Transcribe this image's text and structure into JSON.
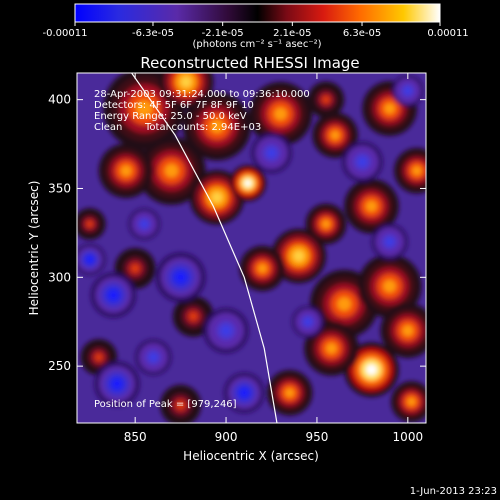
{
  "chart_data": {
    "type": "heatmap",
    "title": "Reconstructed RHESSI Image",
    "xlabel": "Heliocentric X (arcsec)",
    "ylabel": "Heliocentric Y (arcsec)",
    "xlim": [
      818,
      1010
    ],
    "ylim": [
      218,
      415
    ],
    "x_ticks": [
      850,
      900,
      950,
      1000
    ],
    "y_ticks": [
      250,
      300,
      350,
      400
    ],
    "colorbar": {
      "ticks": [
        "-0.00011",
        "-6.3e-05",
        "-2.1e-05",
        "2.1e-05",
        "6.3e-05",
        "0.00011"
      ],
      "tick_values": [
        -0.00011,
        -6.3e-05,
        -2.1e-05,
        2.1e-05,
        6.3e-05,
        0.00011
      ],
      "label": "(photons cm⁻² s⁻¹ asec⁻²)",
      "colormap": [
        "#0000ff",
        "#3a2bd0",
        "#5a2aa8",
        "#2a0a2e",
        "#000000",
        "#8a0a1a",
        "#e01a10",
        "#ff7a00",
        "#ffd000",
        "#ffffff"
      ]
    },
    "annotations": [
      "28-Apr-2003 09:31:24.000 to 09:36:10.000",
      "Detectors: 4F 5F 6F 7F 8F 9F 10",
      "Energy Range: 25.0 - 50.0 keV",
      "Clean",
      "Total counts: 2.94E+03"
    ],
    "peak_label": "Position of Peak = [979,246]",
    "peak": [
      979,
      246
    ],
    "limb": [
      [
        846,
        418
      ],
      [
        872,
        380
      ],
      [
        893,
        340
      ],
      [
        910,
        300
      ],
      [
        921,
        260
      ],
      [
        928,
        218
      ]
    ],
    "blobs": [
      {
        "x": 855,
        "y": 395,
        "r": 18,
        "v": 0.75
      },
      {
        "x": 878,
        "y": 410,
        "r": 12,
        "v": 0.85
      },
      {
        "x": 895,
        "y": 385,
        "r": 15,
        "v": 0.7
      },
      {
        "x": 870,
        "y": 360,
        "r": 15,
        "v": 0.7
      },
      {
        "x": 845,
        "y": 360,
        "r": 12,
        "v": 0.65
      },
      {
        "x": 895,
        "y": 345,
        "r": 12,
        "v": 0.9
      },
      {
        "x": 912,
        "y": 353,
        "r": 8,
        "v": 1.0
      },
      {
        "x": 930,
        "y": 392,
        "r": 14,
        "v": 0.65
      },
      {
        "x": 960,
        "y": 380,
        "r": 10,
        "v": 0.7
      },
      {
        "x": 990,
        "y": 395,
        "r": 12,
        "v": 0.6
      },
      {
        "x": 1005,
        "y": 360,
        "r": 10,
        "v": 0.75
      },
      {
        "x": 980,
        "y": 340,
        "r": 12,
        "v": 0.6
      },
      {
        "x": 940,
        "y": 312,
        "r": 12,
        "v": 0.9
      },
      {
        "x": 955,
        "y": 330,
        "r": 9,
        "v": 0.75
      },
      {
        "x": 920,
        "y": 305,
        "r": 10,
        "v": 0.6
      },
      {
        "x": 965,
        "y": 285,
        "r": 15,
        "v": 0.6
      },
      {
        "x": 990,
        "y": 295,
        "r": 14,
        "v": 0.75
      },
      {
        "x": 980,
        "y": 248,
        "r": 12,
        "v": 1.0
      },
      {
        "x": 958,
        "y": 260,
        "r": 12,
        "v": 0.75
      },
      {
        "x": 1000,
        "y": 270,
        "r": 12,
        "v": 0.7
      },
      {
        "x": 935,
        "y": 235,
        "r": 10,
        "v": 0.6
      },
      {
        "x": 850,
        "y": 305,
        "r": 9,
        "v": 0.55
      },
      {
        "x": 882,
        "y": 278,
        "r": 9,
        "v": 0.5
      },
      {
        "x": 830,
        "y": 255,
        "r": 8,
        "v": 0.45
      },
      {
        "x": 875,
        "y": 228,
        "r": 9,
        "v": 0.45
      },
      {
        "x": 955,
        "y": 400,
        "r": 8,
        "v": 0.55
      },
      {
        "x": 1002,
        "y": 230,
        "r": 9,
        "v": 0.6
      },
      {
        "x": 825,
        "y": 330,
        "r": 7,
        "v": 0.55
      },
      {
        "x": 838,
        "y": 290,
        "r": 10,
        "v": -0.6
      },
      {
        "x": 875,
        "y": 300,
        "r": 11,
        "v": -0.55
      },
      {
        "x": 900,
        "y": 270,
        "r": 10,
        "v": -0.5
      },
      {
        "x": 840,
        "y": 240,
        "r": 10,
        "v": -0.55
      },
      {
        "x": 910,
        "y": 235,
        "r": 9,
        "v": -0.6
      },
      {
        "x": 860,
        "y": 255,
        "r": 8,
        "v": -0.45
      },
      {
        "x": 825,
        "y": 310,
        "r": 7,
        "v": -0.6
      },
      {
        "x": 925,
        "y": 370,
        "r": 9,
        "v": -0.45
      },
      {
        "x": 975,
        "y": 365,
        "r": 9,
        "v": -0.45
      },
      {
        "x": 990,
        "y": 320,
        "r": 8,
        "v": -0.4
      },
      {
        "x": 945,
        "y": 275,
        "r": 7,
        "v": -0.4
      },
      {
        "x": 1000,
        "y": 405,
        "r": 7,
        "v": -0.4
      },
      {
        "x": 855,
        "y": 330,
        "r": 7,
        "v": -0.45
      }
    ]
  },
  "footer_date": "1-Jun-2013 23:23"
}
